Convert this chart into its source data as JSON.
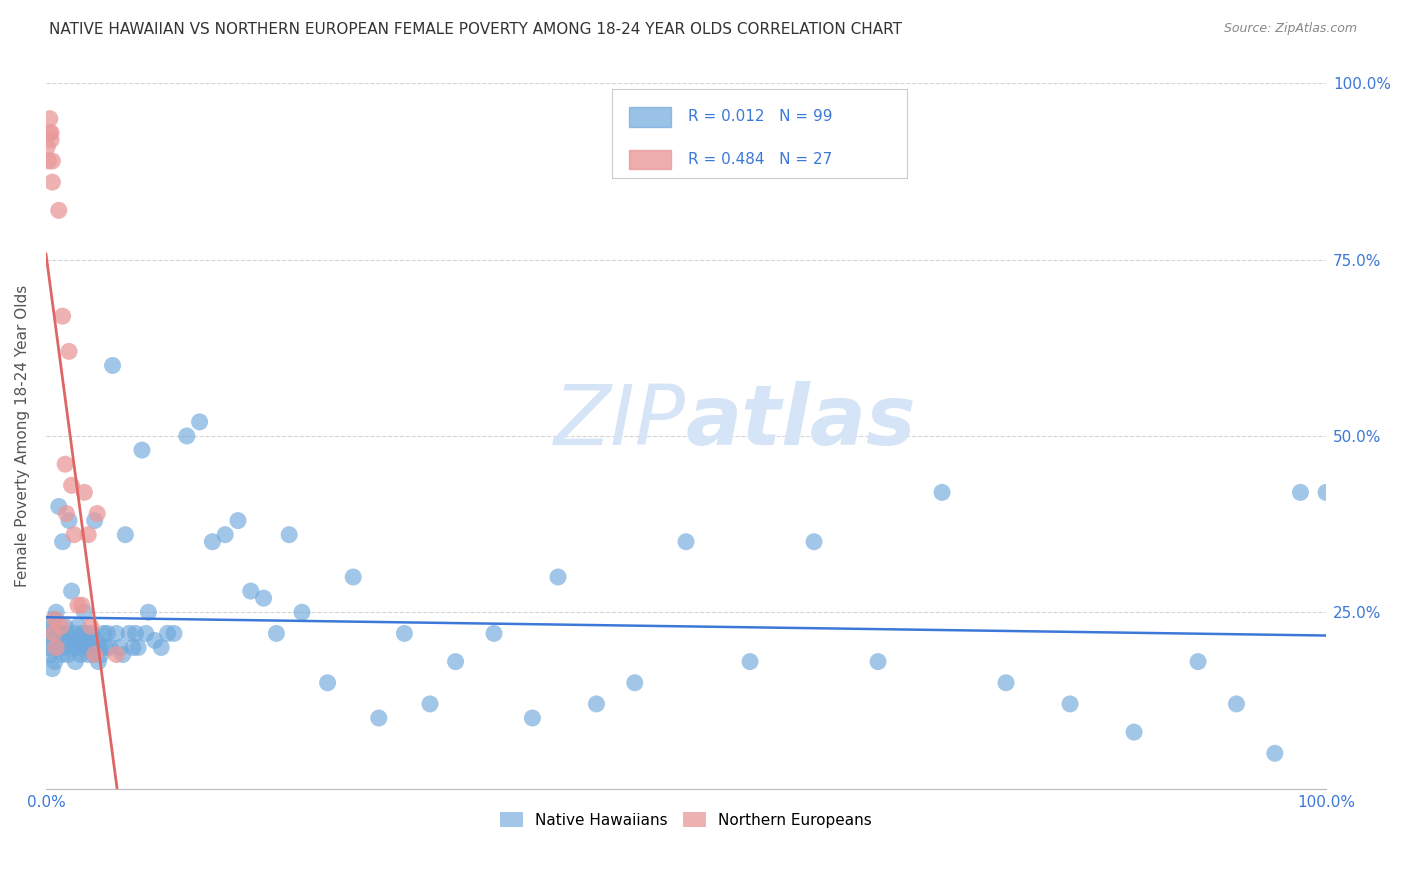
{
  "title": "NATIVE HAWAIIAN VS NORTHERN EUROPEAN FEMALE POVERTY AMONG 18-24 YEAR OLDS CORRELATION CHART",
  "source": "Source: ZipAtlas.com",
  "ylabel": "Female Poverty Among 18-24 Year Olds",
  "legend_native": "Native Hawaiians",
  "legend_european": "Northern Europeans",
  "blue_color": "#6fa8dc",
  "pink_color": "#ea9999",
  "trend_blue_color": "#3c78d8",
  "trend_pink_color": "#e06666",
  "background_color": "#ffffff",
  "blue_R": 0.012,
  "blue_N": 99,
  "pink_R": 0.484,
  "pink_N": 27,
  "blue_scatter_x": [
    0.001,
    0.002,
    0.003,
    0.004,
    0.005,
    0.005,
    0.006,
    0.007,
    0.008,
    0.009,
    0.01,
    0.011,
    0.012,
    0.013,
    0.014,
    0.015,
    0.015,
    0.016,
    0.017,
    0.018,
    0.019,
    0.02,
    0.021,
    0.022,
    0.023,
    0.024,
    0.025,
    0.026,
    0.027,
    0.028,
    0.029,
    0.03,
    0.031,
    0.032,
    0.033,
    0.034,
    0.035,
    0.036,
    0.037,
    0.038,
    0.039,
    0.04,
    0.041,
    0.042,
    0.043,
    0.045,
    0.047,
    0.048,
    0.05,
    0.052,
    0.055,
    0.058,
    0.06,
    0.062,
    0.065,
    0.068,
    0.07,
    0.072,
    0.075,
    0.078,
    0.08,
    0.085,
    0.09,
    0.095,
    0.1,
    0.11,
    0.12,
    0.13,
    0.14,
    0.15,
    0.16,
    0.17,
    0.18,
    0.19,
    0.2,
    0.22,
    0.24,
    0.26,
    0.28,
    0.3,
    0.32,
    0.35,
    0.38,
    0.4,
    0.43,
    0.46,
    0.5,
    0.55,
    0.6,
    0.65,
    0.7,
    0.75,
    0.8,
    0.85,
    0.9,
    0.93,
    0.96,
    0.98,
    1.0
  ],
  "blue_scatter_y": [
    0.22,
    0.2,
    0.19,
    0.23,
    0.21,
    0.17,
    0.24,
    0.18,
    0.25,
    0.2,
    0.4,
    0.22,
    0.19,
    0.35,
    0.21,
    0.23,
    0.2,
    0.22,
    0.19,
    0.38,
    0.21,
    0.28,
    0.2,
    0.22,
    0.18,
    0.21,
    0.23,
    0.2,
    0.19,
    0.22,
    0.21,
    0.25,
    0.2,
    0.22,
    0.19,
    0.21,
    0.2,
    0.22,
    0.19,
    0.38,
    0.21,
    0.2,
    0.18,
    0.2,
    0.19,
    0.22,
    0.2,
    0.22,
    0.2,
    0.6,
    0.22,
    0.2,
    0.19,
    0.36,
    0.22,
    0.2,
    0.22,
    0.2,
    0.48,
    0.22,
    0.25,
    0.21,
    0.2,
    0.22,
    0.22,
    0.5,
    0.52,
    0.35,
    0.36,
    0.38,
    0.28,
    0.27,
    0.22,
    0.36,
    0.25,
    0.15,
    0.3,
    0.1,
    0.22,
    0.12,
    0.18,
    0.22,
    0.1,
    0.3,
    0.12,
    0.15,
    0.35,
    0.18,
    0.35,
    0.18,
    0.42,
    0.15,
    0.12,
    0.08,
    0.18,
    0.12,
    0.05,
    0.42,
    0.42
  ],
  "pink_scatter_x": [
    0.001,
    0.002,
    0.003,
    0.003,
    0.004,
    0.004,
    0.005,
    0.005,
    0.006,
    0.007,
    0.008,
    0.01,
    0.012,
    0.013,
    0.015,
    0.016,
    0.018,
    0.02,
    0.022,
    0.025,
    0.028,
    0.03,
    0.033,
    0.035,
    0.038,
    0.04,
    0.055
  ],
  "pink_scatter_y": [
    0.91,
    0.89,
    0.93,
    0.95,
    0.92,
    0.93,
    0.89,
    0.86,
    0.22,
    0.24,
    0.2,
    0.82,
    0.23,
    0.67,
    0.46,
    0.39,
    0.62,
    0.43,
    0.36,
    0.26,
    0.26,
    0.42,
    0.36,
    0.23,
    0.19,
    0.39,
    0.19
  ]
}
